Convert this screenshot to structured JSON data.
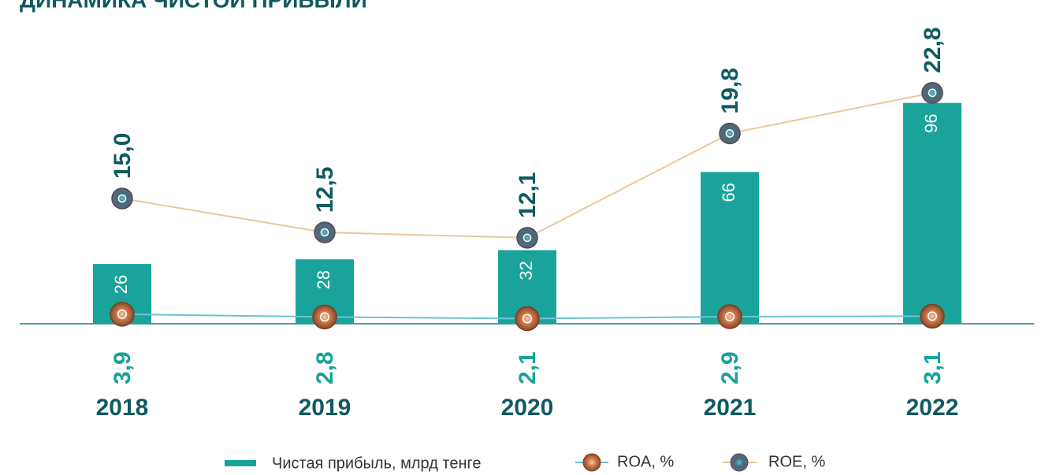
{
  "chart_data": {
    "type": "bar",
    "title": "ДИНАМИКА ЧИСТОЙ ПРИБЫЛИ",
    "categories": [
      "2018",
      "2019",
      "2020",
      "2021",
      "2022"
    ],
    "series": [
      {
        "name": "Чистая прибыль, млрд тенге",
        "type": "bar",
        "color": "#1aa39a",
        "values": [
          26,
          28,
          32,
          66,
          96
        ]
      },
      {
        "name": "ROA, %",
        "type": "line",
        "color": "#6cc3d5",
        "values": [
          3.9,
          2.8,
          2.1,
          2.9,
          3.1
        ],
        "value_labels": [
          "3,9",
          "2,8",
          "2,1",
          "2,9",
          "3,1"
        ]
      },
      {
        "name": "ROE, %",
        "type": "line",
        "color": "#e8c99a",
        "values": [
          15.0,
          12.5,
          12.1,
          19.8,
          22.8
        ],
        "value_labels": [
          "15,0",
          "12,5",
          "12,1",
          "19,8",
          "22,8"
        ]
      }
    ]
  }
}
